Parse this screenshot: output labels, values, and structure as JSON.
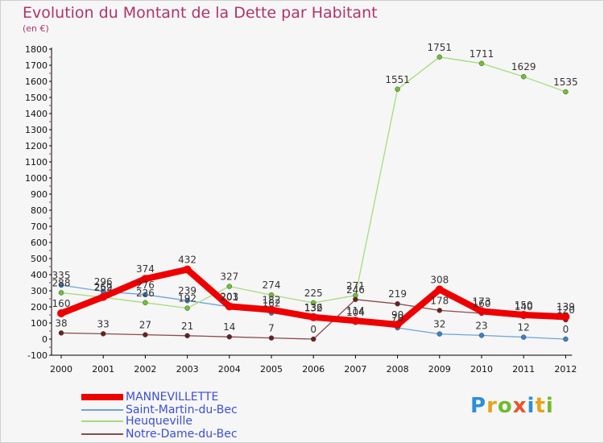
{
  "header": {
    "title": "Evolution du Montant de la Dette par Habitant",
    "unit": "(en €)"
  },
  "brand": {
    "text": "Proxiti",
    "letters": [
      "P",
      "r",
      "o",
      "x",
      "i",
      "t",
      "i"
    ],
    "colors": [
      "#2d8fd5",
      "#e8a31a",
      "#6fbb2f",
      "#e8552a",
      "#2d8fd5",
      "#e8a31a",
      "#6fbb2f"
    ]
  },
  "chart_data": {
    "type": "line",
    "title": "Evolution du Montant de la Dette par Habitant",
    "ylabel": "(en €)",
    "xlabel": "",
    "ylim": [
      -100,
      1800
    ],
    "yticks": [
      -100,
      0,
      100,
      200,
      300,
      400,
      500,
      600,
      700,
      800,
      900,
      1000,
      1100,
      1200,
      1300,
      1400,
      1500,
      1600,
      1700,
      1800
    ],
    "categories": [
      "2000",
      "2001",
      "2002",
      "2003",
      "2004",
      "2005",
      "2006",
      "2007",
      "2008",
      "2009",
      "2010",
      "2011",
      "2012"
    ],
    "grid": false,
    "legend_position": "bottom-left",
    "series": [
      {
        "name": "Saint-Martin-du-Bec",
        "color": "#6fa3d8",
        "marker_color": "#3a7fc8",
        "values": [
          335,
          296,
          276,
          239,
          201,
          162,
          132,
          104,
          70,
          32,
          23,
          12,
          0
        ],
        "labels": [
          "335",
          "296",
          "276",
          "239",
          "201",
          "162",
          "132",
          "104",
          "70",
          "32",
          "23",
          "12",
          "0"
        ]
      },
      {
        "name": "Heuqueville",
        "color": "#a6dc7c",
        "marker_color": "#6fc035",
        "values": [
          288,
          259,
          226,
          192,
          327,
          274,
          225,
          271,
          1551,
          1751,
          1711,
          1629,
          1535
        ],
        "labels": [
          "288",
          "259",
          "226",
          "192",
          "327",
          "274",
          "225",
          "271",
          "1551",
          "1751",
          "1711",
          "1629",
          "1535"
        ]
      },
      {
        "name": "Notre-Dame-du-Bec",
        "color": "#8c4a4a",
        "marker_color": "#6b2020",
        "values": [
          38,
          33,
          27,
          21,
          14,
          7,
          0,
          246,
          219,
          178,
          160,
          140,
          120
        ],
        "labels": [
          "38",
          "33",
          "27",
          "21",
          "14",
          "7",
          "0",
          "246",
          "219",
          "178",
          "160",
          "140",
          "120"
        ]
      },
      {
        "name": "MANNEVILLETTE",
        "color": "#ee0000",
        "marker_color": "#ee0000",
        "values": [
          160,
          262,
          374,
          432,
          203,
          182,
          136,
          114,
          90,
          308,
          173,
          150,
          139
        ],
        "labels": [
          "160",
          "262",
          "374",
          "432",
          "203",
          "182",
          "136",
          "114",
          "90",
          "308",
          "173",
          "150",
          "139"
        ]
      }
    ]
  }
}
